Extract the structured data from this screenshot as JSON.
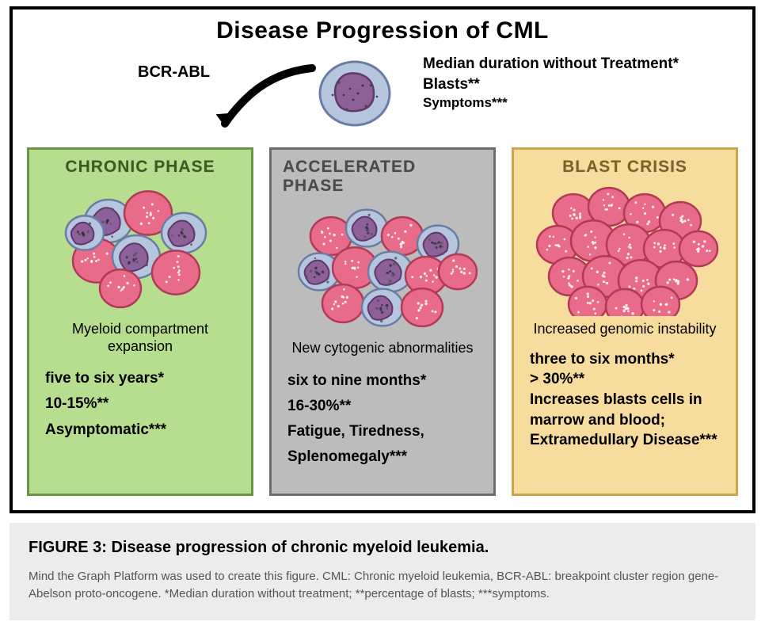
{
  "title": "Disease Progression of CML",
  "header": {
    "gene_label": "BCR-ABL",
    "legend": {
      "line1": "Median duration without Treatment*",
      "line2": "Blasts**",
      "line3": "Symptoms***"
    }
  },
  "cell_colors": {
    "blast_fill": "#e86b8a",
    "blast_stroke": "#b23a57",
    "myeloid_fill": "#b7c6df",
    "myeloid_stroke": "#6a7ea3",
    "nucleus_fill": "#8d609a",
    "nucleus_stroke": "#5d3a6b",
    "dot": "#ffffff"
  },
  "phases": [
    {
      "key": "chronic",
      "title": "CHRONIC PHASE",
      "bg_color": "#b7dd8f",
      "border_color": "#6b9447",
      "title_color": "#3d5a26",
      "description": "Myeloid compartment expansion",
      "duration": "five to six years*",
      "blasts": "10-15%**",
      "symptoms": "Asymptomatic***",
      "cell_count_hint": 8
    },
    {
      "key": "accelerated",
      "title": "ACCELERATED PHASE",
      "bg_color": "#bcbcbc",
      "border_color": "#6d6d6d",
      "title_color": "#4a4a4a",
      "description": "New cytogenic abnormalities",
      "duration": "six to nine months*",
      "blasts": "16-30%**",
      "symptoms": "Fatigue, Tiredness, Splenomegaly***",
      "cell_count_hint": 12
    },
    {
      "key": "blast",
      "title": "BLAST CRISIS",
      "bg_color": "#f6dd9d",
      "border_color": "#c9a54f",
      "title_color": "#7a622c",
      "description": "Increased genomic instability",
      "duration": "three to six months*",
      "blasts": " > 30%**",
      "symptoms": "Increases blasts cells in marrow and blood; Extramedullary Disease***",
      "cell_count_hint": 16
    }
  ],
  "caption": {
    "title": "FIGURE 3: Disease progression of chronic myeloid leukemia.",
    "text": "Mind the Graph Platform was used to create this figure. CML: Chronic myeloid leukemia, BCR-ABL: breakpoint cluster region gene-Abelson proto-oncogene. *Median duration without treatment; **percentage of blasts; ***symptoms."
  }
}
